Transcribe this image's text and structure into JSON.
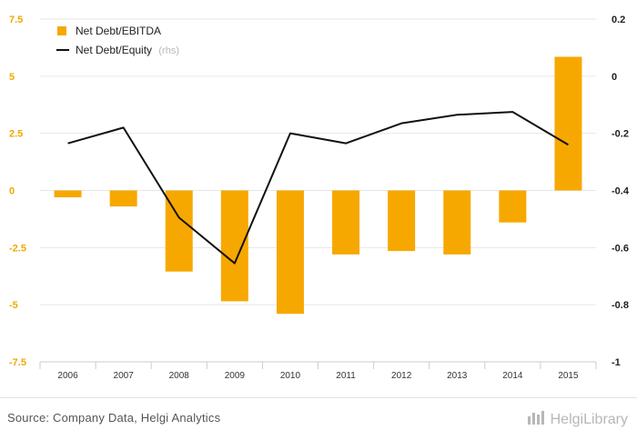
{
  "chart_data": {
    "type": "bar",
    "categories": [
      "2006",
      "2007",
      "2008",
      "2009",
      "2010",
      "2011",
      "2012",
      "2013",
      "2014",
      "2015"
    ],
    "series": [
      {
        "name": "Net Debt/EBITDA",
        "type": "bar",
        "axis": "left",
        "color": "#f7a800",
        "values": [
          -0.3,
          -0.7,
          -3.55,
          -4.85,
          -5.4,
          -2.8,
          -2.65,
          -2.8,
          -1.4,
          5.85
        ]
      },
      {
        "name": "Net Debt/Equity",
        "name_suffix": "(rhs)",
        "type": "line",
        "axis": "right",
        "color": "#111111",
        "values": [
          -0.235,
          -0.18,
          -0.495,
          -0.655,
          -0.2,
          -0.235,
          -0.165,
          -0.135,
          -0.125,
          -0.24
        ]
      }
    ],
    "y_left": {
      "ylim": [
        -7.5,
        7.5
      ],
      "ticks": [
        7.5,
        5,
        2.5,
        0,
        -2.5,
        -5,
        -7.5
      ],
      "tick_labels": [
        "7.5",
        "5",
        "2.5",
        "0",
        "-2.5",
        "-5",
        "-7.5"
      ],
      "color": "#f2a900"
    },
    "y_right": {
      "ylim": [
        -1,
        0.2
      ],
      "ticks": [
        0.2,
        0,
        -0.2,
        -0.4,
        -0.6,
        -0.8,
        -1
      ],
      "tick_labels": [
        "0.2",
        "0",
        "-0.2",
        "-0.4",
        "-0.6",
        "-0.8",
        "-1"
      ]
    },
    "grid": true,
    "legend_position": "top-left"
  },
  "footer": {
    "source": "Source: Company Data, Helgi Analytics",
    "brand": "HelgiLibrary",
    "brand_icon": "helgi-library-icon"
  }
}
